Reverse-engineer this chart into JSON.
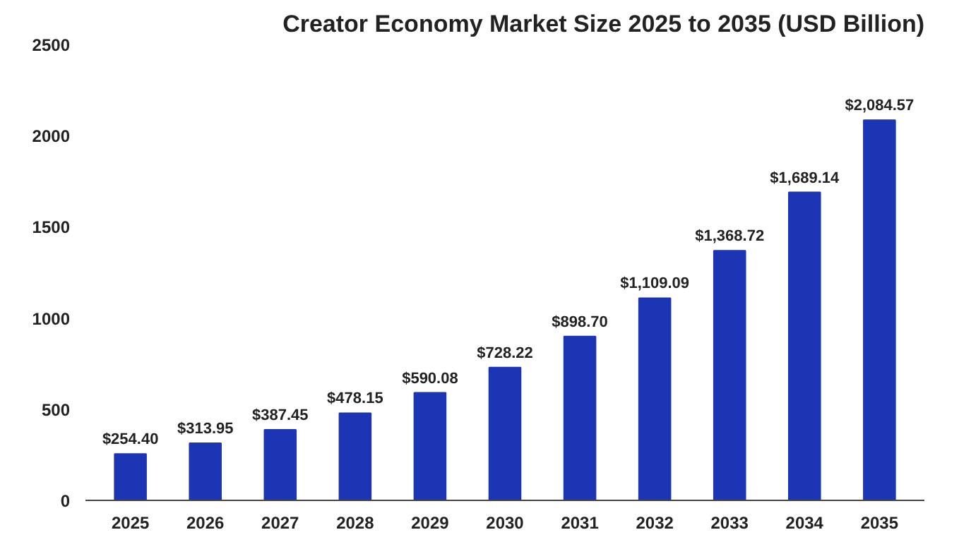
{
  "chart_data": {
    "type": "bar",
    "title": "Creator Economy Market Size 2025 to 2035 (USD Billion)",
    "categories": [
      "2025",
      "2026",
      "2027",
      "2028",
      "2029",
      "2030",
      "2031",
      "2032",
      "2033",
      "2034",
      "2035"
    ],
    "values": [
      254.4,
      313.95,
      387.45,
      478.15,
      590.08,
      728.22,
      898.7,
      1109.09,
      1368.72,
      1689.14,
      2084.57
    ],
    "value_labels": [
      "$254.40",
      "$313.95",
      "$387.45",
      "$478.15",
      "$590.08",
      "$728.22",
      "$898.70",
      "$1,109.09",
      "$1,368.72",
      "$1,689.14",
      "$2,084.57"
    ],
    "color": "#1c35b5",
    "ylim": [
      0,
      2500
    ],
    "yticks": [
      0,
      500,
      1000,
      1500,
      2000,
      2500
    ],
    "grid": false
  }
}
